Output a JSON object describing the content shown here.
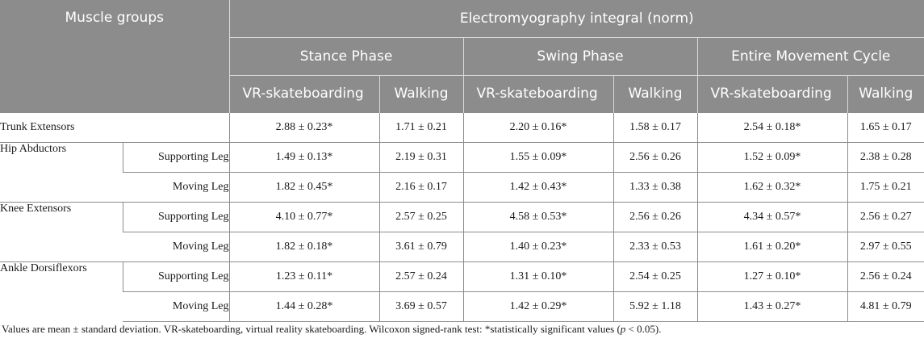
{
  "header": {
    "muscle_groups": "Muscle groups",
    "emg_title": "Electromyography integral (norm)",
    "phases": [
      "Stance Phase",
      "Swing Phase",
      "Entire Movement Cycle"
    ],
    "conditions": [
      "VR-skateboarding",
      "Walking",
      "VR-skateboarding",
      "Walking",
      "VR-skateboarding",
      "Walking"
    ]
  },
  "rows": [
    {
      "group": "Trunk Extensors",
      "values": [
        "2.88 ± 0.23*",
        "1.71 ± 0.21",
        "2.20 ± 0.16*",
        "1.58 ± 0.17",
        "2.54 ± 0.18*",
        "1.65 ± 0.17"
      ]
    },
    {
      "group": "Hip Abductors",
      "leg": "Supporting Leg",
      "values": [
        "1.49 ± 0.13*",
        "2.19 ± 0.31",
        "1.55 ± 0.09*",
        "2.56 ± 0.26",
        "1.52 ± 0.09*",
        "2.38 ± 0.28"
      ]
    },
    {
      "leg": "Moving Leg",
      "values": [
        "1.82 ± 0.45*",
        "2.16 ± 0.17",
        "1.42 ± 0.43*",
        "1.33 ± 0.38",
        "1.62 ± 0.32*",
        "1.75 ± 0.21"
      ]
    },
    {
      "group": "Knee Extensors",
      "leg": "Supporting Leg",
      "values": [
        "4.10 ± 0.77*",
        "2.57 ± 0.25",
        "4.58 ± 0.53*",
        "2.56 ± 0.26",
        "4.34 ± 0.57*",
        "2.56 ± 0.27"
      ]
    },
    {
      "leg": "Moving Leg",
      "values": [
        "1.82 ± 0.18*",
        "3.61 ± 0.79",
        "1.40 ± 0.23*",
        "2.33 ± 0.53",
        "1.61 ± 0.20*",
        "2.97 ± 0.55"
      ]
    },
    {
      "group": "Ankle Dorsiflexors",
      "leg": "Supporting Leg",
      "values": [
        "1.23 ± 0.11*",
        "2.57 ± 0.24",
        "1.31 ± 0.10*",
        "2.54 ± 0.25",
        "1.27 ± 0.10*",
        "2.56 ± 0.24"
      ]
    },
    {
      "leg": "Moving Leg",
      "values": [
        "1.44 ± 0.28*",
        "3.69 ± 0.57",
        "1.42 ± 0.29*",
        "5.92 ± 1.18",
        "1.43 ± 0.27*",
        "4.81 ± 0.79"
      ]
    }
  ],
  "caption": {
    "before": "Values are mean ± standard deviation. VR-skateboarding, virtual reality skateboarding. Wilcoxon signed-rank test: *statistically significant values (",
    "p": "p",
    "after": " < 0.05)."
  }
}
